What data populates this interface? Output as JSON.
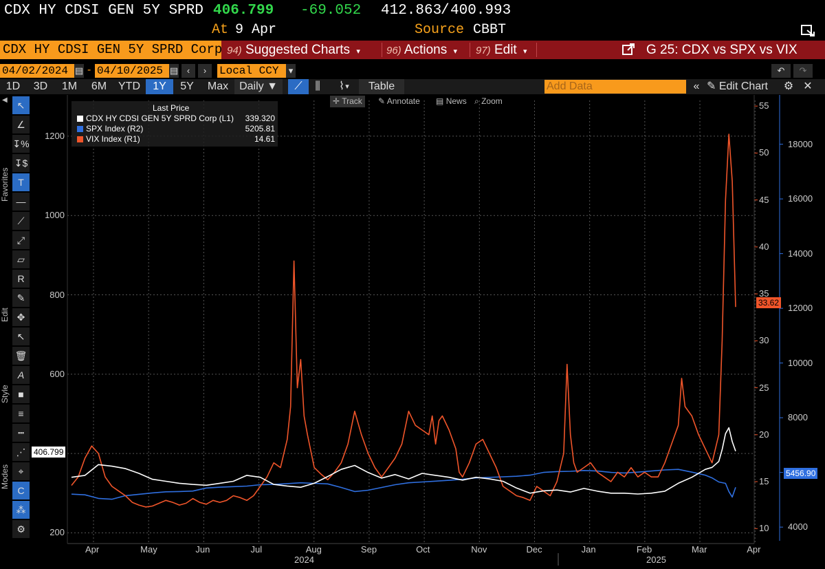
{
  "quote": {
    "ticker": "CDX HY CDSI GEN 5Y SPRD",
    "last": "406.799",
    "change": "-69.052",
    "bid": "412.863",
    "slash": "/",
    "ask": "400.993",
    "at_label": "At",
    "at_value": "9 Apr",
    "source_label": "Source",
    "source_value": "CBBT"
  },
  "titlebar": {
    "security": "CDX HY CDSI GEN 5Y SPRD Corp",
    "menus": [
      {
        "num": "94)",
        "label": "Suggested Charts"
      },
      {
        "num": "96)",
        "label": "Actions"
      },
      {
        "num": "97)",
        "label": "Edit"
      }
    ],
    "chart_title": "G 25: CDX vs SPX vs VIX"
  },
  "daterow": {
    "start": "04/02/2024",
    "dash": "-",
    "end": "04/10/2025",
    "currency": "Local CCY"
  },
  "rangerow": {
    "ranges": [
      "1D",
      "3D",
      "1M",
      "6M",
      "YTD",
      "1Y",
      "5Y",
      "Max"
    ],
    "active": "1Y",
    "period": "Daily",
    "table_label": "Table",
    "add_data_placeholder": "Add Data",
    "edit_chart_label": "Edit Chart"
  },
  "toolbar_sections": [
    "Favorites",
    "Edit",
    "Style",
    "Modes"
  ],
  "chart_tools": [
    "Track",
    "Annotate",
    "News",
    "Zoom"
  ],
  "legend": {
    "header": "Last Price",
    "items": [
      {
        "name": "CDX HY CDSI GEN 5Y SPRD Corp  (L1)",
        "value": "339.320",
        "color": "#ffffff"
      },
      {
        "name": "SPX Index  (R2)",
        "value": "5205.81",
        "color": "#2f6fe0"
      },
      {
        "name": "VIX Index  (R1)",
        "value": "14.61",
        "color": "#f0552a"
      }
    ]
  },
  "price_labels": {
    "cdx": "406.799",
    "vix": "33.62",
    "spx": "5456.90"
  },
  "colors": {
    "cdx": "#ffffff",
    "spx": "#2f6fe0",
    "vix": "#f0552a",
    "accent_orange": "#f89a1c",
    "titlebar_red": "#8d1419"
  },
  "chart_data": {
    "type": "line",
    "x_ticks": [
      "Apr",
      "May",
      "Jun",
      "Jul",
      "Aug",
      "Sep",
      "Oct",
      "Nov",
      "Dec",
      "Jan",
      "Feb",
      "Mar",
      "Apr"
    ],
    "x_year_labels": [
      "2024",
      "2025"
    ],
    "axes": {
      "left": {
        "ticks": [
          200,
          400,
          600,
          800,
          1000,
          1200
        ],
        "range": [
          180,
          1290
        ]
      },
      "right1": {
        "ticks": [
          10,
          15,
          20,
          25,
          30,
          35,
          40,
          45,
          50,
          55
        ],
        "range": [
          8.7,
          55.6
        ]
      },
      "right2": {
        "ticks": [
          4000,
          6000,
          8000,
          10000,
          12000,
          14000,
          16000,
          18000
        ],
        "range": [
          3500,
          19600
        ]
      }
    },
    "grid": true,
    "series": [
      {
        "name": "CDX HY CDSI GEN 5Y SPRD Corp",
        "axis": "left",
        "points": [
          [
            0,
            340
          ],
          [
            0.02,
            345
          ],
          [
            0.04,
            372
          ],
          [
            0.06,
            368
          ],
          [
            0.08,
            362
          ],
          [
            0.1,
            350
          ],
          [
            0.12,
            335
          ],
          [
            0.14,
            330
          ],
          [
            0.16,
            325
          ],
          [
            0.18,
            322
          ],
          [
            0.2,
            320
          ],
          [
            0.22,
            325
          ],
          [
            0.24,
            330
          ],
          [
            0.26,
            345
          ],
          [
            0.28,
            340
          ],
          [
            0.3,
            322
          ],
          [
            0.32,
            318
          ],
          [
            0.34,
            315
          ],
          [
            0.36,
            325
          ],
          [
            0.38,
            342
          ],
          [
            0.4,
            360
          ],
          [
            0.42,
            370
          ],
          [
            0.44,
            352
          ],
          [
            0.46,
            338
          ],
          [
            0.48,
            347
          ],
          [
            0.5,
            336
          ],
          [
            0.52,
            350
          ],
          [
            0.54,
            345
          ],
          [
            0.56,
            340
          ],
          [
            0.58,
            333
          ],
          [
            0.6,
            340
          ],
          [
            0.62,
            336
          ],
          [
            0.64,
            330
          ],
          [
            0.66,
            313
          ],
          [
            0.68,
            300
          ],
          [
            0.7,
            306
          ],
          [
            0.72,
            308
          ],
          [
            0.74,
            303
          ],
          [
            0.76,
            312
          ],
          [
            0.78,
            305
          ],
          [
            0.8,
            300
          ],
          [
            0.82,
            300
          ],
          [
            0.84,
            298
          ],
          [
            0.86,
            300
          ],
          [
            0.88,
            305
          ],
          [
            0.9,
            325
          ],
          [
            0.92,
            340
          ],
          [
            0.94,
            360
          ],
          [
            0.95,
            365
          ],
          [
            0.96,
            380
          ],
          [
            0.965,
            410
          ],
          [
            0.97,
            450
          ],
          [
            0.975,
            465
          ],
          [
            0.98,
            430
          ],
          [
            0.985,
            406
          ]
        ]
      },
      {
        "name": "SPX Index",
        "axis": "right2",
        "points": [
          [
            0,
            5205
          ],
          [
            0.02,
            5180
          ],
          [
            0.04,
            5050
          ],
          [
            0.06,
            5020
          ],
          [
            0.08,
            5150
          ],
          [
            0.1,
            5200
          ],
          [
            0.12,
            5250
          ],
          [
            0.14,
            5290
          ],
          [
            0.16,
            5300
          ],
          [
            0.18,
            5320
          ],
          [
            0.2,
            5430
          ],
          [
            0.22,
            5460
          ],
          [
            0.24,
            5480
          ],
          [
            0.26,
            5500
          ],
          [
            0.28,
            5550
          ],
          [
            0.3,
            5560
          ],
          [
            0.32,
            5590
          ],
          [
            0.34,
            5620
          ],
          [
            0.36,
            5600
          ],
          [
            0.38,
            5580
          ],
          [
            0.4,
            5450
          ],
          [
            0.42,
            5300
          ],
          [
            0.44,
            5350
          ],
          [
            0.46,
            5450
          ],
          [
            0.48,
            5550
          ],
          [
            0.5,
            5620
          ],
          [
            0.52,
            5650
          ],
          [
            0.54,
            5680
          ],
          [
            0.56,
            5710
          ],
          [
            0.58,
            5750
          ],
          [
            0.6,
            5800
          ],
          [
            0.62,
            5820
          ],
          [
            0.64,
            5840
          ],
          [
            0.66,
            5860
          ],
          [
            0.68,
            5900
          ],
          [
            0.7,
            6000
          ],
          [
            0.72,
            6030
          ],
          [
            0.74,
            6040
          ],
          [
            0.76,
            6070
          ],
          [
            0.78,
            6050
          ],
          [
            0.8,
            6000
          ],
          [
            0.82,
            5980
          ],
          [
            0.84,
            6010
          ],
          [
            0.86,
            6050
          ],
          [
            0.88,
            6090
          ],
          [
            0.9,
            6110
          ],
          [
            0.92,
            6010
          ],
          [
            0.94,
            5900
          ],
          [
            0.95,
            5800
          ],
          [
            0.96,
            5650
          ],
          [
            0.97,
            5600
          ],
          [
            0.975,
            5300
          ],
          [
            0.98,
            5100
          ],
          [
            0.985,
            5457
          ]
        ]
      },
      {
        "name": "VIX Index",
        "axis": "right1",
        "points": [
          [
            0,
            14.6
          ],
          [
            0.01,
            15.5
          ],
          [
            0.02,
            17.5
          ],
          [
            0.03,
            18.8
          ],
          [
            0.04,
            18.0
          ],
          [
            0.05,
            15.5
          ],
          [
            0.06,
            14.5
          ],
          [
            0.07,
            14.0
          ],
          [
            0.08,
            13.5
          ],
          [
            0.09,
            12.8
          ],
          [
            0.1,
            12.5
          ],
          [
            0.11,
            12.3
          ],
          [
            0.12,
            12.4
          ],
          [
            0.13,
            12.7
          ],
          [
            0.14,
            13.0
          ],
          [
            0.15,
            12.8
          ],
          [
            0.16,
            12.5
          ],
          [
            0.17,
            12.7
          ],
          [
            0.18,
            13.2
          ],
          [
            0.19,
            12.8
          ],
          [
            0.2,
            12.6
          ],
          [
            0.21,
            13.0
          ],
          [
            0.22,
            12.8
          ],
          [
            0.23,
            13.0
          ],
          [
            0.24,
            13.5
          ],
          [
            0.25,
            13.3
          ],
          [
            0.26,
            13.0
          ],
          [
            0.27,
            13.5
          ],
          [
            0.28,
            14.5
          ],
          [
            0.29,
            15.5
          ],
          [
            0.3,
            17.0
          ],
          [
            0.31,
            16.5
          ],
          [
            0.315,
            18.0
          ],
          [
            0.32,
            19.5
          ],
          [
            0.325,
            23.0
          ],
          [
            0.33,
            38.5
          ],
          [
            0.335,
            25.0
          ],
          [
            0.34,
            28.0
          ],
          [
            0.345,
            22.0
          ],
          [
            0.35,
            20.0
          ],
          [
            0.36,
            16.5
          ],
          [
            0.37,
            15.8
          ],
          [
            0.38,
            15.2
          ],
          [
            0.39,
            16.0
          ],
          [
            0.4,
            17.0
          ],
          [
            0.41,
            19.0
          ],
          [
            0.42,
            22.5
          ],
          [
            0.43,
            20.0
          ],
          [
            0.44,
            18.0
          ],
          [
            0.45,
            16.5
          ],
          [
            0.46,
            15.5
          ],
          [
            0.47,
            16.5
          ],
          [
            0.48,
            17.5
          ],
          [
            0.49,
            19.0
          ],
          [
            0.5,
            22.5
          ],
          [
            0.51,
            21.0
          ],
          [
            0.52,
            20.5
          ],
          [
            0.53,
            20.0
          ],
          [
            0.535,
            22.0
          ],
          [
            0.54,
            19.0
          ],
          [
            0.545,
            21.5
          ],
          [
            0.55,
            22.0
          ],
          [
            0.56,
            20.5
          ],
          [
            0.57,
            18.5
          ],
          [
            0.575,
            16.0
          ],
          [
            0.58,
            15.5
          ],
          [
            0.59,
            17.0
          ],
          [
            0.6,
            19.0
          ],
          [
            0.61,
            19.5
          ],
          [
            0.62,
            18.0
          ],
          [
            0.63,
            16.5
          ],
          [
            0.64,
            14.5
          ],
          [
            0.65,
            14.0
          ],
          [
            0.66,
            13.5
          ],
          [
            0.67,
            13.3
          ],
          [
            0.68,
            13.0
          ],
          [
            0.69,
            14.5
          ],
          [
            0.7,
            14.0
          ],
          [
            0.71,
            13.5
          ],
          [
            0.72,
            15.0
          ],
          [
            0.73,
            18.0
          ],
          [
            0.735,
            27.5
          ],
          [
            0.74,
            20.0
          ],
          [
            0.745,
            17.0
          ],
          [
            0.75,
            16.0
          ],
          [
            0.76,
            16.5
          ],
          [
            0.77,
            17.0
          ],
          [
            0.78,
            16.0
          ],
          [
            0.79,
            15.5
          ],
          [
            0.8,
            15.0
          ],
          [
            0.81,
            16.0
          ],
          [
            0.82,
            15.5
          ],
          [
            0.83,
            16.5
          ],
          [
            0.84,
            15.5
          ],
          [
            0.85,
            16.0
          ],
          [
            0.86,
            15.5
          ],
          [
            0.87,
            15.5
          ],
          [
            0.88,
            17.0
          ],
          [
            0.89,
            19.0
          ],
          [
            0.9,
            21.0
          ],
          [
            0.905,
            26.0
          ],
          [
            0.91,
            23.0
          ],
          [
            0.92,
            22.0
          ],
          [
            0.93,
            20.0
          ],
          [
            0.94,
            18.5
          ],
          [
            0.95,
            17.0
          ],
          [
            0.955,
            18.5
          ],
          [
            0.96,
            20.0
          ],
          [
            0.965,
            30.0
          ],
          [
            0.97,
            45.0
          ],
          [
            0.975,
            52.0
          ],
          [
            0.98,
            47.0
          ],
          [
            0.985,
            33.6
          ]
        ]
      }
    ]
  }
}
